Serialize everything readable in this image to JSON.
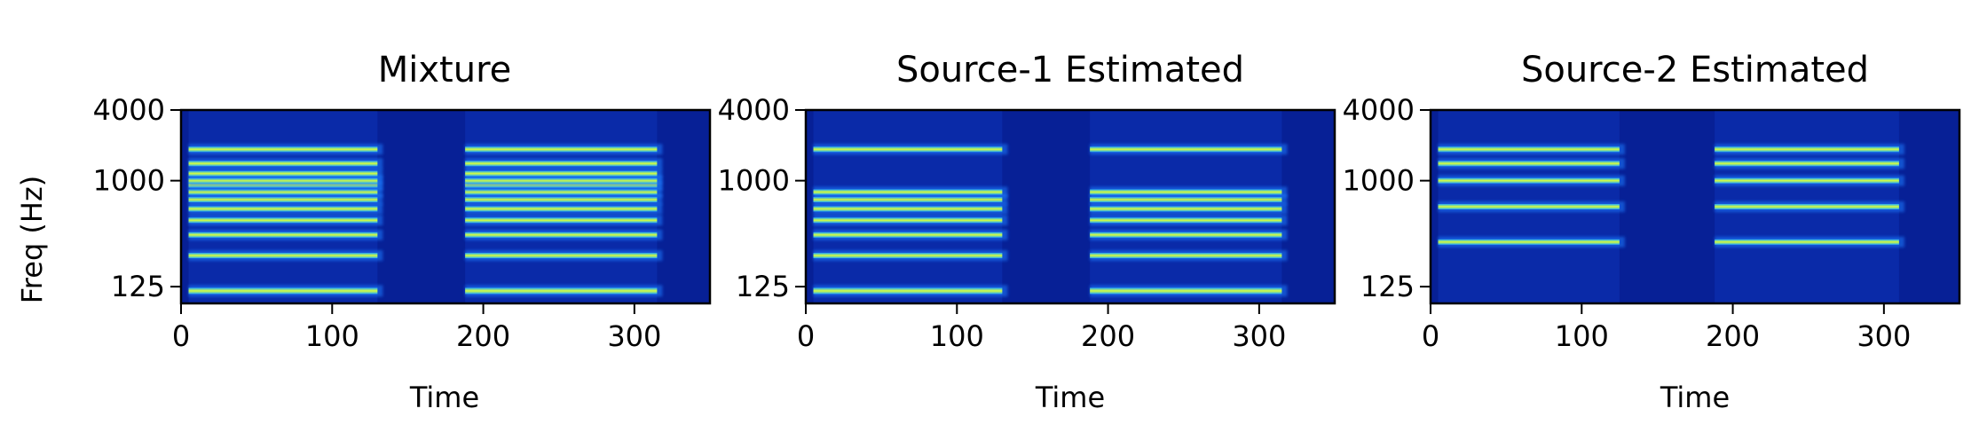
{
  "chart_data": [
    {
      "type": "heatmap",
      "title": "Mixture",
      "xlabel": "Time",
      "ylabel": "Freq (Hz)",
      "xlim": [
        0,
        350
      ],
      "xticks": [
        0,
        100,
        200,
        300
      ],
      "yscale": "log",
      "ylim": [
        90,
        4000
      ],
      "yticks": [
        125,
        1000,
        4000
      ],
      "background_color": "#0a2aa8",
      "segments": [
        [
          5,
          130
        ],
        [
          188,
          315
        ]
      ],
      "harmonics_hz": [
        115,
        230,
        345,
        460,
        575,
        690,
        800,
        920,
        1000,
        1150,
        1400,
        1850
      ]
    },
    {
      "type": "heatmap",
      "title": "Source-1 Estimated",
      "xlabel": "Time",
      "ylabel": "",
      "xlim": [
        0,
        350
      ],
      "xticks": [
        0,
        100,
        200,
        300
      ],
      "yscale": "log",
      "ylim": [
        90,
        4000
      ],
      "yticks": [
        125,
        1000,
        4000
      ],
      "background_color": "#0a2aa8",
      "segments": [
        [
          5,
          130
        ],
        [
          188,
          315
        ]
      ],
      "harmonics_hz": [
        115,
        230,
        345,
        460,
        575,
        690,
        800,
        1850
      ]
    },
    {
      "type": "heatmap",
      "title": "Source-2 Estimated",
      "xlabel": "Time",
      "ylabel": "",
      "xlim": [
        0,
        350
      ],
      "xticks": [
        0,
        100,
        200,
        300
      ],
      "yscale": "log",
      "ylim": [
        90,
        4000
      ],
      "yticks": [
        125,
        1000,
        4000
      ],
      "background_color": "#0a2aa8",
      "segments": [
        [
          5,
          125
        ],
        [
          188,
          310
        ]
      ],
      "harmonics_hz": [
        300,
        600,
        1000,
        1400,
        1850
      ]
    }
  ]
}
